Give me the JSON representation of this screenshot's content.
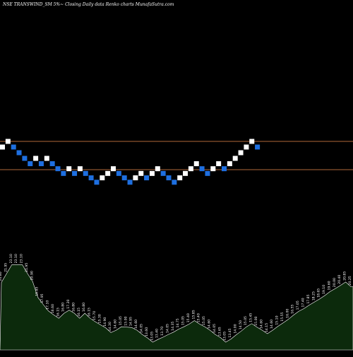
{
  "header": {
    "title": "NSE TRANSWIND_SM 5%~ Closing Daily data  Renko  charts MunafaSutra.com"
  },
  "colors": {
    "background": "#000000",
    "up_brick": "#ffffff",
    "down_brick": "#1e6fe0",
    "level_line": "#b0673a",
    "volume_fill": "#0c2a0c",
    "volume_outline": "#ffffff"
  },
  "chart_data": {
    "type": "renko",
    "bricks": [
      {
        "dir": "up",
        "level": 18.55
      },
      {
        "dir": "up",
        "level": 19.45
      },
      {
        "dir": "down",
        "level": 18.55
      },
      {
        "dir": "down",
        "level": 17.65
      },
      {
        "dir": "down",
        "level": 16.75
      },
      {
        "dir": "down",
        "level": 15.9
      },
      {
        "dir": "up",
        "level": 16.75
      },
      {
        "dir": "down",
        "level": 15.9
      },
      {
        "dir": "up",
        "level": 16.75
      },
      {
        "dir": "down",
        "level": 15.9
      },
      {
        "dir": "down",
        "level": 15.1
      },
      {
        "dir": "down",
        "level": 14.35
      },
      {
        "dir": "up",
        "level": 15.1
      },
      {
        "dir": "down",
        "level": 14.35
      },
      {
        "dir": "up",
        "level": 15.1
      },
      {
        "dir": "down",
        "level": 14.35
      },
      {
        "dir": "down",
        "level": 13.65
      },
      {
        "dir": "down",
        "level": 12.95
      },
      {
        "dir": "up",
        "level": 13.65
      },
      {
        "dir": "up",
        "level": 14.35
      },
      {
        "dir": "up",
        "level": 15.1
      },
      {
        "dir": "down",
        "level": 14.35
      },
      {
        "dir": "down",
        "level": 13.65
      },
      {
        "dir": "down",
        "level": 12.95
      },
      {
        "dir": "up",
        "level": 13.65
      },
      {
        "dir": "up",
        "level": 14.35
      },
      {
        "dir": "down",
        "level": 13.65
      },
      {
        "dir": "up",
        "level": 14.35
      },
      {
        "dir": "up",
        "level": 15.1
      },
      {
        "dir": "down",
        "level": 14.35
      },
      {
        "dir": "down",
        "level": 13.65
      },
      {
        "dir": "down",
        "level": 12.95
      },
      {
        "dir": "up",
        "level": 13.65
      },
      {
        "dir": "up",
        "level": 14.35
      },
      {
        "dir": "up",
        "level": 15.1
      },
      {
        "dir": "up",
        "level": 15.9
      },
      {
        "dir": "down",
        "level": 15.1
      },
      {
        "dir": "down",
        "level": 14.35
      },
      {
        "dir": "up",
        "level": 15.1
      },
      {
        "dir": "up",
        "level": 15.9
      },
      {
        "dir": "down",
        "level": 15.1
      },
      {
        "dir": "up",
        "level": 15.9
      },
      {
        "dir": "up",
        "level": 16.75
      },
      {
        "dir": "up",
        "level": 17.65
      },
      {
        "dir": "up",
        "level": 18.55
      },
      {
        "dir": "up",
        "level": 19.45
      },
      {
        "dir": "down",
        "level": 18.55
      }
    ],
    "reference_lines": [
      19.45,
      14.95
    ],
    "volume_labels": [
      "20.80",
      "21.95",
      "23.10",
      "23.10",
      "23.10",
      "21.95",
      "20.90",
      "18.85",
      "17.95",
      "17.10",
      "16.60",
      "16.15",
      "16.80",
      "17.20",
      "16.80",
      "16.15",
      "16.80",
      "16.15",
      "15.70",
      "15.30",
      "14.90",
      "14.30",
      "14.60",
      "15.05",
      "15.00",
      "14.95",
      "14.60",
      "14.05",
      "13.60",
      "13.05",
      "13.40",
      "13.70",
      "14.05",
      "14.35",
      "14.75",
      "15.05",
      "15.40",
      "15.85",
      "15.40",
      "15.05",
      "14.60",
      "14.05",
      "13.65",
      "13.05",
      "13.45",
      "14.00",
      "14.50",
      "15.05",
      "15.45",
      "15.00",
      "14.60",
      "14.15",
      "14.60",
      "15.10",
      "15.55",
      "16.00",
      "16.55",
      "17.05",
      "17.40",
      "17.85",
      "18.25",
      "18.65",
      "19.10",
      "19.60",
      "20.00",
      "20.40",
      "20.85",
      "20.25"
    ]
  }
}
